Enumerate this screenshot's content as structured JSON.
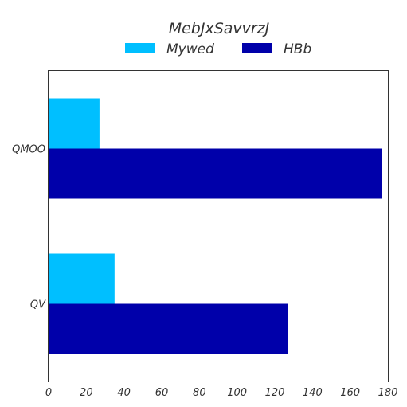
{
  "chart_data": {
    "type": "bar",
    "orientation": "horizontal",
    "legend_title": "MebJxSavvrzJ",
    "legend_position": "top-center",
    "categories": [
      "QMOO",
      "QV"
    ],
    "series": [
      {
        "name": "Mywed",
        "color": "#00bfff",
        "values": [
          27,
          35
        ]
      },
      {
        "name": "HBb",
        "color": "#0000aa",
        "values": [
          177,
          127
        ]
      }
    ],
    "xlim": [
      0,
      180
    ],
    "xticks": [
      0,
      20,
      40,
      60,
      80,
      100,
      120,
      140,
      160,
      180
    ],
    "grid": false
  }
}
